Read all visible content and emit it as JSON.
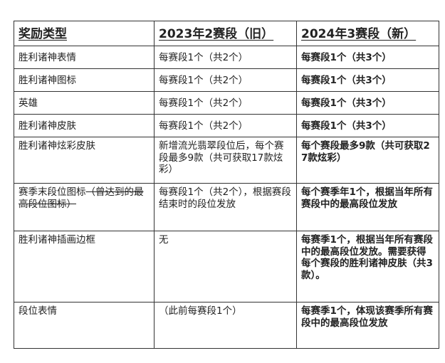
{
  "headers": [
    "奖励类型",
    "2023年2赛段（旧）",
    "2024年3赛段（新）"
  ],
  "rows": [
    {
      "type": "胜利诸神表情",
      "old": "每赛段1个（共2个）",
      "new": "每赛段1个（共3个）"
    },
    {
      "type": "胜利诸神图标",
      "old": "每赛段1个（共2个）",
      "new": "每赛段1个（共3个）"
    },
    {
      "type": "英雄",
      "old": "每赛段1个（共2个）",
      "new": "每赛段1个（共3个）"
    },
    {
      "type": "胜利诸神皮肤",
      "old": "每赛段1个（共2个）",
      "new": "每赛段1个（共3个）"
    },
    {
      "type": "胜利诸神炫彩皮肤",
      "old": "新增流光翡翠段位后，每个赛段最多9款（共可获取17款炫彩）",
      "new": "每个赛段最多9款（共可获取27款炫彩）"
    },
    {
      "type": "赛季末段位图标",
      "type_struck": "（曾达到的最高段位图标）",
      "old": "每赛段1个（共2个），根据赛段结束时的段位发放",
      "new": "每个赛季年1个，根据当年所有赛段中的最高段位发放"
    },
    {
      "type": "胜利诸神插画边框",
      "old": "无",
      "new": "每赛季1个，根据当年所有赛段中的最高段位发放。需要获得每个赛段的胜利诸神皮肤（共3款）。"
    },
    {
      "type": "段位表情",
      "old": "（此前每赛段1个）",
      "new": "每赛季1个，体现该赛季所有赛段中的最高段位发放"
    }
  ]
}
